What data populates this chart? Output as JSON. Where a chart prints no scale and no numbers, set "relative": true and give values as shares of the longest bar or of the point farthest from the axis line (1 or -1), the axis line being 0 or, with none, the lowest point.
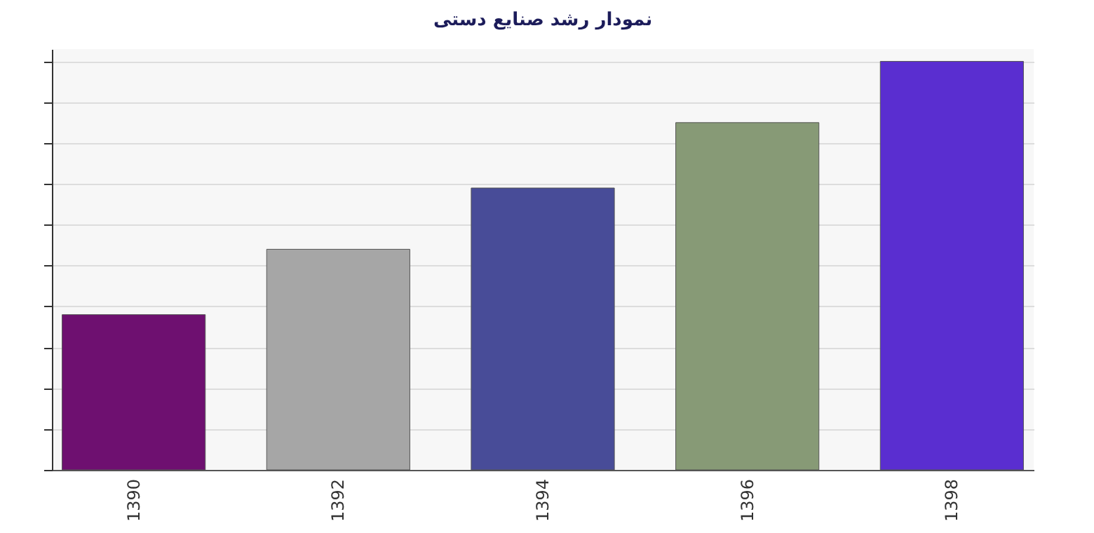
{
  "chart_data": {
    "type": "bar",
    "title": "نمودار رشد صنایع دستی",
    "categories": [
      "1390",
      "1392",
      "1394",
      "1396",
      "1398"
    ],
    "values": [
      0.38,
      0.54,
      0.69,
      0.85,
      1
    ],
    "colors": [
      "#6e1070",
      "#a6a6a6",
      "#484c98",
      "#879a76",
      "#5a2ed0"
    ],
    "relative": true,
    "grid": "y",
    "tick_labels": "x"
  }
}
